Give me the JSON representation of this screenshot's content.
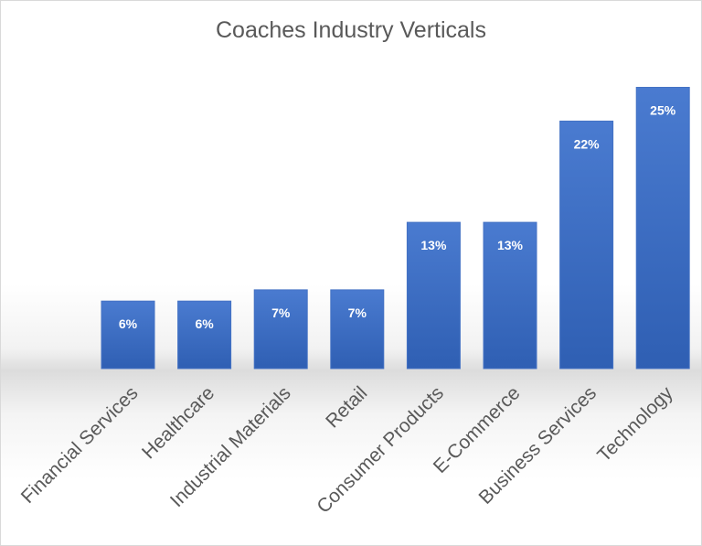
{
  "chart_data": {
    "type": "bar",
    "title": "Coaches Industry Verticals",
    "categories": [
      "Financial Services",
      "Healthcare",
      "Industrial Materials",
      "Retail",
      "Consumer Products",
      "E-Commerce",
      "Business Services",
      "Technology"
    ],
    "values": [
      6,
      6,
      7,
      7,
      13,
      13,
      22,
      25
    ],
    "data_labels": [
      "6%",
      "6%",
      "7%",
      "7%",
      "13%",
      "13%",
      "22%",
      "25%"
    ],
    "bar_color": "#4472c4",
    "grid": false,
    "legend": "none"
  }
}
